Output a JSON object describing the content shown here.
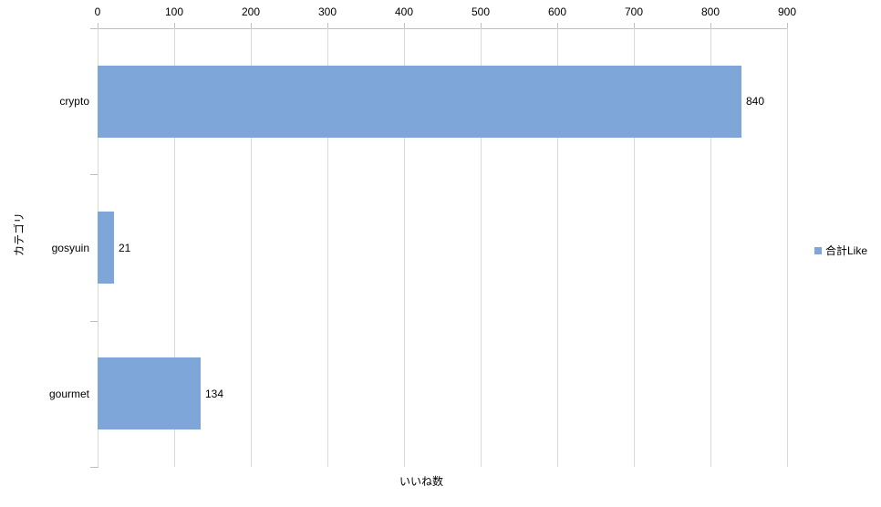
{
  "chart_data": {
    "type": "bar",
    "orientation": "horizontal",
    "title": "",
    "xlabel": "いいね数",
    "ylabel": "カテゴリ",
    "categories": [
      "crypto",
      "gosyuin",
      "gourmet"
    ],
    "series": [
      {
        "name": "合計Like",
        "values": [
          840,
          21,
          134
        ]
      }
    ],
    "data_labels": [
      "840",
      "21",
      "134"
    ],
    "xlim": [
      0,
      900
    ],
    "xticks": [
      0,
      100,
      200,
      300,
      400,
      500,
      600,
      700,
      800,
      900
    ],
    "grid": true,
    "legend_position": "right"
  },
  "legend": {
    "items": [
      {
        "label": "合計Like",
        "color": "#7EA6D8"
      }
    ]
  },
  "colors": {
    "bar": "#7EA6D8",
    "gridline": "#D9D9D9",
    "axis": "#BFBFBF",
    "text": "#000000",
    "background": "#FFFFFF"
  }
}
